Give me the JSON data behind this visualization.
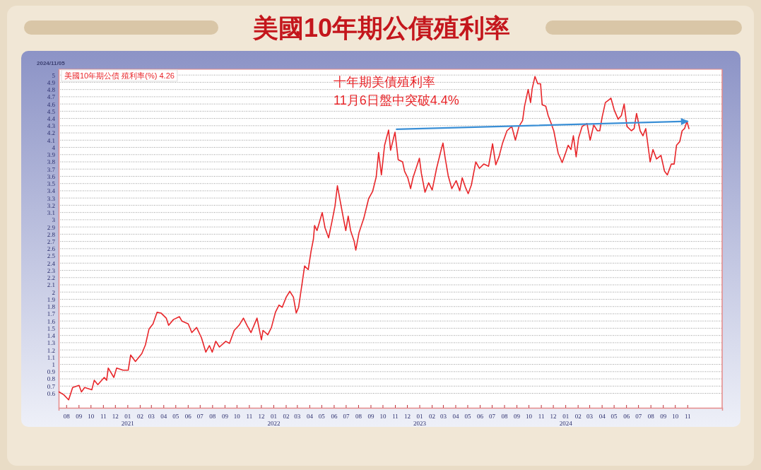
{
  "chart_data": {
    "type": "line",
    "title": "美國10年期公債殖利率",
    "annotations": [
      "2024/11/05",
      "十年期美債殖利率",
      "11月6日盤中突破4.4%"
    ],
    "xlim": [
      "2020-07-13",
      "2025-01-27"
    ],
    "ylim": [
      0.4,
      5.08
    ],
    "yticks": [
      0.6,
      0.7,
      0.8,
      0.9,
      1,
      1.1,
      1.2,
      1.3,
      1.4,
      1.5,
      1.6,
      1.7,
      1.8,
      1.9,
      2,
      2.1,
      2.2,
      2.3,
      2.4,
      2.5,
      2.6,
      2.7,
      2.8,
      2.9,
      3,
      3.1,
      3.2,
      3.3,
      3.4,
      3.5,
      3.6,
      3.7,
      3.8,
      3.9,
      4,
      4.1,
      4.2,
      4.3,
      4.4,
      4.5,
      4.6,
      4.7,
      4.8,
      4.9,
      5
    ],
    "xticks": [
      {
        "value": "2020-08-01",
        "label": "08"
      },
      {
        "value": "2020-09-01",
        "label": "09"
      },
      {
        "value": "2020-10-01",
        "label": "10"
      },
      {
        "value": "2020-11-01",
        "label": "11"
      },
      {
        "value": "2020-12-01",
        "label": "12"
      },
      {
        "value": "2021-01-01",
        "label": "01\n2021"
      },
      {
        "value": "2021-02-01",
        "label": "02"
      },
      {
        "value": "2021-03-01",
        "label": "03"
      },
      {
        "value": "2021-04-01",
        "label": "04"
      },
      {
        "value": "2021-05-01",
        "label": "05"
      },
      {
        "value": "2021-06-01",
        "label": "06"
      },
      {
        "value": "2021-07-01",
        "label": "07"
      },
      {
        "value": "2021-08-01",
        "label": "08"
      },
      {
        "value": "2021-09-01",
        "label": "09"
      },
      {
        "value": "2021-10-01",
        "label": "10"
      },
      {
        "value": "2021-11-01",
        "label": "11"
      },
      {
        "value": "2021-12-01",
        "label": "12"
      },
      {
        "value": "2022-01-01",
        "label": "01\n2022"
      },
      {
        "value": "2022-02-01",
        "label": "02"
      },
      {
        "value": "2022-03-01",
        "label": "03"
      },
      {
        "value": "2022-04-01",
        "label": "04"
      },
      {
        "value": "2022-05-01",
        "label": "05"
      },
      {
        "value": "2022-06-01",
        "label": "06"
      },
      {
        "value": "2022-07-01",
        "label": "07"
      },
      {
        "value": "2022-08-01",
        "label": "08"
      },
      {
        "value": "2022-09-01",
        "label": "09"
      },
      {
        "value": "2022-10-01",
        "label": "10"
      },
      {
        "value": "2022-11-01",
        "label": "11"
      },
      {
        "value": "2022-12-01",
        "label": "12"
      },
      {
        "value": "2023-01-01",
        "label": "01\n2023"
      },
      {
        "value": "2023-02-01",
        "label": "02"
      },
      {
        "value": "2023-03-01",
        "label": "03"
      },
      {
        "value": "2023-04-01",
        "label": "04"
      },
      {
        "value": "2023-05-01",
        "label": "05"
      },
      {
        "value": "2023-06-01",
        "label": "06"
      },
      {
        "value": "2023-07-01",
        "label": "07"
      },
      {
        "value": "2023-08-01",
        "label": "08"
      },
      {
        "value": "2023-09-01",
        "label": "09"
      },
      {
        "value": "2023-10-01",
        "label": "10"
      },
      {
        "value": "2023-11-01",
        "label": "11"
      },
      {
        "value": "2023-12-01",
        "label": "12"
      },
      {
        "value": "2024-01-01",
        "label": "01\n2024"
      },
      {
        "value": "2024-02-01",
        "label": "02"
      },
      {
        "value": "2024-03-01",
        "label": "03"
      },
      {
        "value": "2024-04-01",
        "label": "04"
      },
      {
        "value": "2024-05-01",
        "label": "05"
      },
      {
        "value": "2024-06-01",
        "label": "06"
      },
      {
        "value": "2024-07-01",
        "label": "07"
      },
      {
        "value": "2024-08-01",
        "label": "08"
      },
      {
        "value": "2024-09-01",
        "label": "09"
      },
      {
        "value": "2024-10-01",
        "label": "10"
      },
      {
        "value": "2024-11-01",
        "label": "11"
      }
    ],
    "grid": "y",
    "legend": "top left",
    "series": [
      {
        "name": "美國10年期公債 殖利率(%) 4.26",
        "color": "#e8262a",
        "x": [
          "2020-07-14",
          "2020-07-26",
          "2020-08-07",
          "2020-08-17",
          "2020-09-02",
          "2020-09-08",
          "2020-09-16",
          "2020-10-04",
          "2020-10-10",
          "2020-10-19",
          "2020-11-04",
          "2020-11-10",
          "2020-11-14",
          "2020-11-28",
          "2020-12-05",
          "2020-12-21",
          "2021-01-03",
          "2021-01-09",
          "2021-01-21",
          "2021-02-06",
          "2021-02-15",
          "2021-02-24",
          "2021-03-06",
          "2021-03-16",
          "2021-03-26",
          "2021-04-08",
          "2021-04-14",
          "2021-04-26",
          "2021-05-11",
          "2021-05-17",
          "2021-06-02",
          "2021-06-11",
          "2021-06-23",
          "2021-07-05",
          "2021-07-16",
          "2021-07-25",
          "2021-08-01",
          "2021-08-10",
          "2021-08-19",
          "2021-09-04",
          "2021-09-13",
          "2021-09-25",
          "2021-10-07",
          "2021-10-18",
          "2021-10-27",
          "2021-11-06",
          "2021-11-21",
          "2021-12-02",
          "2021-12-06",
          "2021-12-18",
          "2021-12-27",
          "2022-01-06",
          "2022-01-15",
          "2022-01-23",
          "2022-02-02",
          "2022-02-11",
          "2022-02-20",
          "2022-02-27",
          "2022-03-05",
          "2022-03-14",
          "2022-03-20",
          "2022-03-29",
          "2022-04-05",
          "2022-04-11",
          "2022-04-14",
          "2022-04-20",
          "2022-04-29",
          "2022-05-03",
          "2022-05-10",
          "2022-05-19",
          "2022-05-28",
          "2022-06-04",
          "2022-06-10",
          "2022-06-17",
          "2022-06-25",
          "2022-07-01",
          "2022-07-07",
          "2022-07-13",
          "2022-07-22",
          "2022-07-26",
          "2022-08-03",
          "2022-08-15",
          "2022-08-27",
          "2022-09-06",
          "2022-09-15",
          "2022-09-21",
          "2022-09-28",
          "2022-10-06",
          "2022-10-16",
          "2022-10-21",
          "2022-11-01",
          "2022-11-09",
          "2022-11-20",
          "2022-11-25",
          "2022-12-03",
          "2022-12-10",
          "2022-12-16",
          "2023-01-01",
          "2023-01-06",
          "2023-01-15",
          "2023-01-24",
          "2023-02-02",
          "2023-02-13",
          "2023-02-25",
          "2023-03-01",
          "2023-03-06",
          "2023-03-14",
          "2023-03-23",
          "2023-04-03",
          "2023-04-12",
          "2023-04-18",
          "2023-04-26",
          "2023-05-03",
          "2023-05-11",
          "2023-05-22",
          "2023-05-31",
          "2023-06-11",
          "2023-06-23",
          "2023-07-03",
          "2023-07-11",
          "2023-07-19",
          "2023-07-28",
          "2023-08-08",
          "2023-08-20",
          "2023-08-29",
          "2023-09-07",
          "2023-09-16",
          "2023-09-21",
          "2023-09-30",
          "2023-10-06",
          "2023-10-10",
          "2023-10-17",
          "2023-10-24",
          "2023-10-31",
          "2023-11-04",
          "2023-11-13",
          "2023-11-19",
          "2023-11-26",
          "2023-12-03",
          "2023-12-14",
          "2023-12-24",
          "2024-01-02",
          "2024-01-08",
          "2024-01-15",
          "2024-01-21",
          "2024-01-28",
          "2024-02-03",
          "2024-02-12",
          "2024-02-24",
          "2024-03-03",
          "2024-03-12",
          "2024-03-21",
          "2024-03-27",
          "2024-04-02",
          "2024-04-10",
          "2024-04-17",
          "2024-04-24",
          "2024-05-02",
          "2024-05-12",
          "2024-05-20",
          "2024-05-27",
          "2024-06-03",
          "2024-06-14",
          "2024-06-21",
          "2024-06-27",
          "2024-07-06",
          "2024-07-13",
          "2024-07-20",
          "2024-07-31",
          "2024-08-07",
          "2024-08-16",
          "2024-08-27",
          "2024-09-05",
          "2024-09-12",
          "2024-09-22",
          "2024-09-29",
          "2024-10-05",
          "2024-10-13",
          "2024-10-19",
          "2024-10-25",
          "2024-10-31",
          "2024-11-05"
        ],
        "values": [
          0.62,
          0.58,
          0.51,
          0.68,
          0.71,
          0.62,
          0.68,
          0.65,
          0.78,
          0.72,
          0.82,
          0.78,
          0.95,
          0.82,
          0.95,
          0.92,
          0.92,
          1.13,
          1.04,
          1.15,
          1.27,
          1.49,
          1.56,
          1.72,
          1.71,
          1.64,
          1.54,
          1.62,
          1.66,
          1.6,
          1.56,
          1.44,
          1.51,
          1.37,
          1.17,
          1.26,
          1.17,
          1.32,
          1.24,
          1.32,
          1.29,
          1.47,
          1.54,
          1.64,
          1.54,
          1.44,
          1.64,
          1.34,
          1.47,
          1.41,
          1.51,
          1.72,
          1.82,
          1.79,
          1.93,
          2.01,
          1.93,
          1.71,
          1.79,
          2.13,
          2.36,
          2.31,
          2.56,
          2.73,
          2.92,
          2.85,
          3.02,
          3.1,
          2.89,
          2.75,
          2.99,
          3.19,
          3.47,
          3.26,
          3.02,
          2.85,
          3.05,
          2.85,
          2.7,
          2.58,
          2.82,
          3.02,
          3.29,
          3.39,
          3.59,
          3.93,
          3.62,
          4.03,
          4.24,
          3.96,
          4.21,
          3.83,
          3.8,
          3.67,
          3.58,
          3.43,
          3.58,
          3.85,
          3.64,
          3.38,
          3.51,
          3.41,
          3.71,
          3.98,
          4.06,
          3.87,
          3.61,
          3.43,
          3.54,
          3.4,
          3.58,
          3.45,
          3.36,
          3.48,
          3.8,
          3.71,
          3.77,
          3.74,
          4.05,
          3.76,
          3.87,
          4.06,
          4.23,
          4.29,
          4.1,
          4.29,
          4.37,
          4.57,
          4.8,
          4.62,
          4.81,
          4.98,
          4.88,
          4.88,
          4.59,
          4.57,
          4.44,
          4.34,
          4.23,
          3.92,
          3.79,
          3.93,
          4.03,
          3.97,
          4.16,
          3.87,
          4.13,
          4.29,
          4.33,
          4.1,
          4.31,
          4.23,
          4.23,
          4.42,
          4.62,
          4.65,
          4.68,
          4.52,
          4.39,
          4.44,
          4.6,
          4.29,
          4.23,
          4.26,
          4.47,
          4.23,
          4.16,
          4.26,
          3.8,
          3.97,
          3.84,
          3.89,
          3.67,
          3.62,
          3.77,
          3.77,
          4.03,
          4.08,
          4.23,
          4.26,
          4.36,
          4.26
        ]
      },
      {
        "type": "line",
        "color": "#3a8fd6",
        "x": [
          "2022-11-05",
          "2024-11-01"
        ],
        "values": [
          4.25,
          4.36
        ]
      }
    ]
  }
}
